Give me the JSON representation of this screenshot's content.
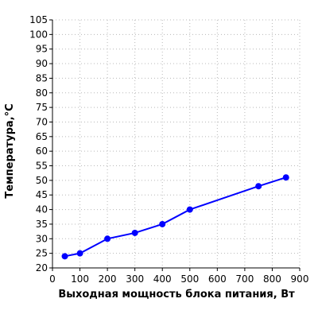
{
  "chart_data": {
    "type": "line",
    "title": "",
    "xlabel": "Выходная мощность блока питания, Вт",
    "ylabel": "Температура,°C",
    "xlim": [
      0,
      900
    ],
    "ylim": [
      20,
      105
    ],
    "xticks": [
      0,
      100,
      200,
      300,
      400,
      500,
      600,
      700,
      800,
      900
    ],
    "yticks": [
      20,
      25,
      30,
      35,
      40,
      45,
      50,
      55,
      60,
      65,
      70,
      75,
      80,
      85,
      90,
      95,
      100,
      105
    ],
    "grid": true,
    "series": [
      {
        "x": [
          45,
          100,
          200,
          300,
          400,
          500,
          750,
          850
        ],
        "y": [
          24,
          25,
          30,
          32,
          35,
          40,
          48,
          51
        ],
        "color": "#0000ff",
        "marker": "circle"
      }
    ]
  }
}
